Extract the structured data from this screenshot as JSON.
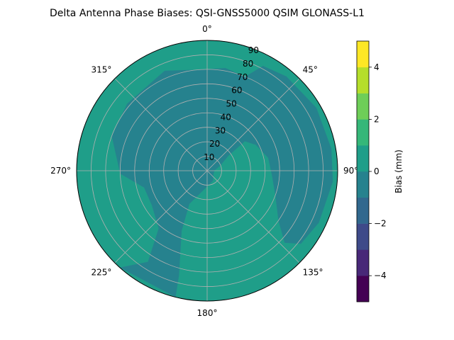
{
  "chart_data": {
    "type": "polar-contour",
    "title": "Delta Antenna Phase Biases: QSI-GNSS5000    QSIM GLONASS-L1",
    "angle_ticks": [
      "0°",
      "45°",
      "90°",
      "135°",
      "180°",
      "225°",
      "270°",
      "315°"
    ],
    "radial_ticks": [
      "10",
      "20",
      "30",
      "40",
      "50",
      "60",
      "70",
      "80",
      "90"
    ],
    "rmax": 90,
    "colorbar": {
      "label": "Bias (mm)",
      "levels": [
        -5,
        -4,
        -3,
        -2,
        -1,
        0,
        1,
        2,
        3,
        4,
        5
      ],
      "tick_values": [
        -4,
        -2,
        0,
        2,
        4
      ],
      "tick_labels": [
        "−4",
        "−2",
        "0",
        "2",
        "4"
      ],
      "colors": [
        "#440154",
        "#482878",
        "#3e4a89",
        "#31688e",
        "#26828e",
        "#1f9e89",
        "#35b779",
        "#6ece58",
        "#b5de2b",
        "#fde725"
      ]
    },
    "field": {
      "background_level": "0 to 1",
      "background_color": "#1f9e89",
      "region_level": "-1 to 0",
      "region_color": "#26828e",
      "region_outline": [
        {
          "az": 337,
          "zen": 75
        },
        {
          "az": 357,
          "zen": 70
        },
        {
          "az": 10,
          "zen": 72
        },
        {
          "az": 22,
          "zen": 70
        },
        {
          "az": 28,
          "zen": 82
        },
        {
          "az": 40,
          "zen": 85
        },
        {
          "az": 60,
          "zen": 87
        },
        {
          "az": 80,
          "zen": 87
        },
        {
          "az": 95,
          "zen": 87
        },
        {
          "az": 115,
          "zen": 85
        },
        {
          "az": 128,
          "zen": 82
        },
        {
          "az": 133,
          "zen": 73
        },
        {
          "az": 125,
          "zen": 60
        },
        {
          "az": 110,
          "zen": 50
        },
        {
          "az": 95,
          "zen": 45
        },
        {
          "az": 78,
          "zen": 43
        },
        {
          "az": 62,
          "zen": 38
        },
        {
          "az": 52,
          "zen": 33
        },
        {
          "az": 55,
          "zen": 18
        },
        {
          "az": 68,
          "zen": 10
        },
        {
          "az": 90,
          "zen": 5
        },
        {
          "az": 120,
          "zen": 5
        },
        {
          "az": 150,
          "zen": 8
        },
        {
          "az": 185,
          "zen": 12
        },
        {
          "az": 208,
          "zen": 26
        },
        {
          "az": 203,
          "zen": 45
        },
        {
          "az": 195,
          "zen": 75
        },
        {
          "az": 194,
          "zen": 90
        },
        {
          "az": 222,
          "zen": 90
        },
        {
          "az": 213,
          "zen": 75
        },
        {
          "az": 220,
          "zen": 52
        },
        {
          "az": 238,
          "zen": 45
        },
        {
          "az": 255,
          "zen": 45
        },
        {
          "az": 268,
          "zen": 60
        },
        {
          "az": 290,
          "zen": 70
        },
        {
          "az": 310,
          "zen": 72
        }
      ]
    }
  }
}
